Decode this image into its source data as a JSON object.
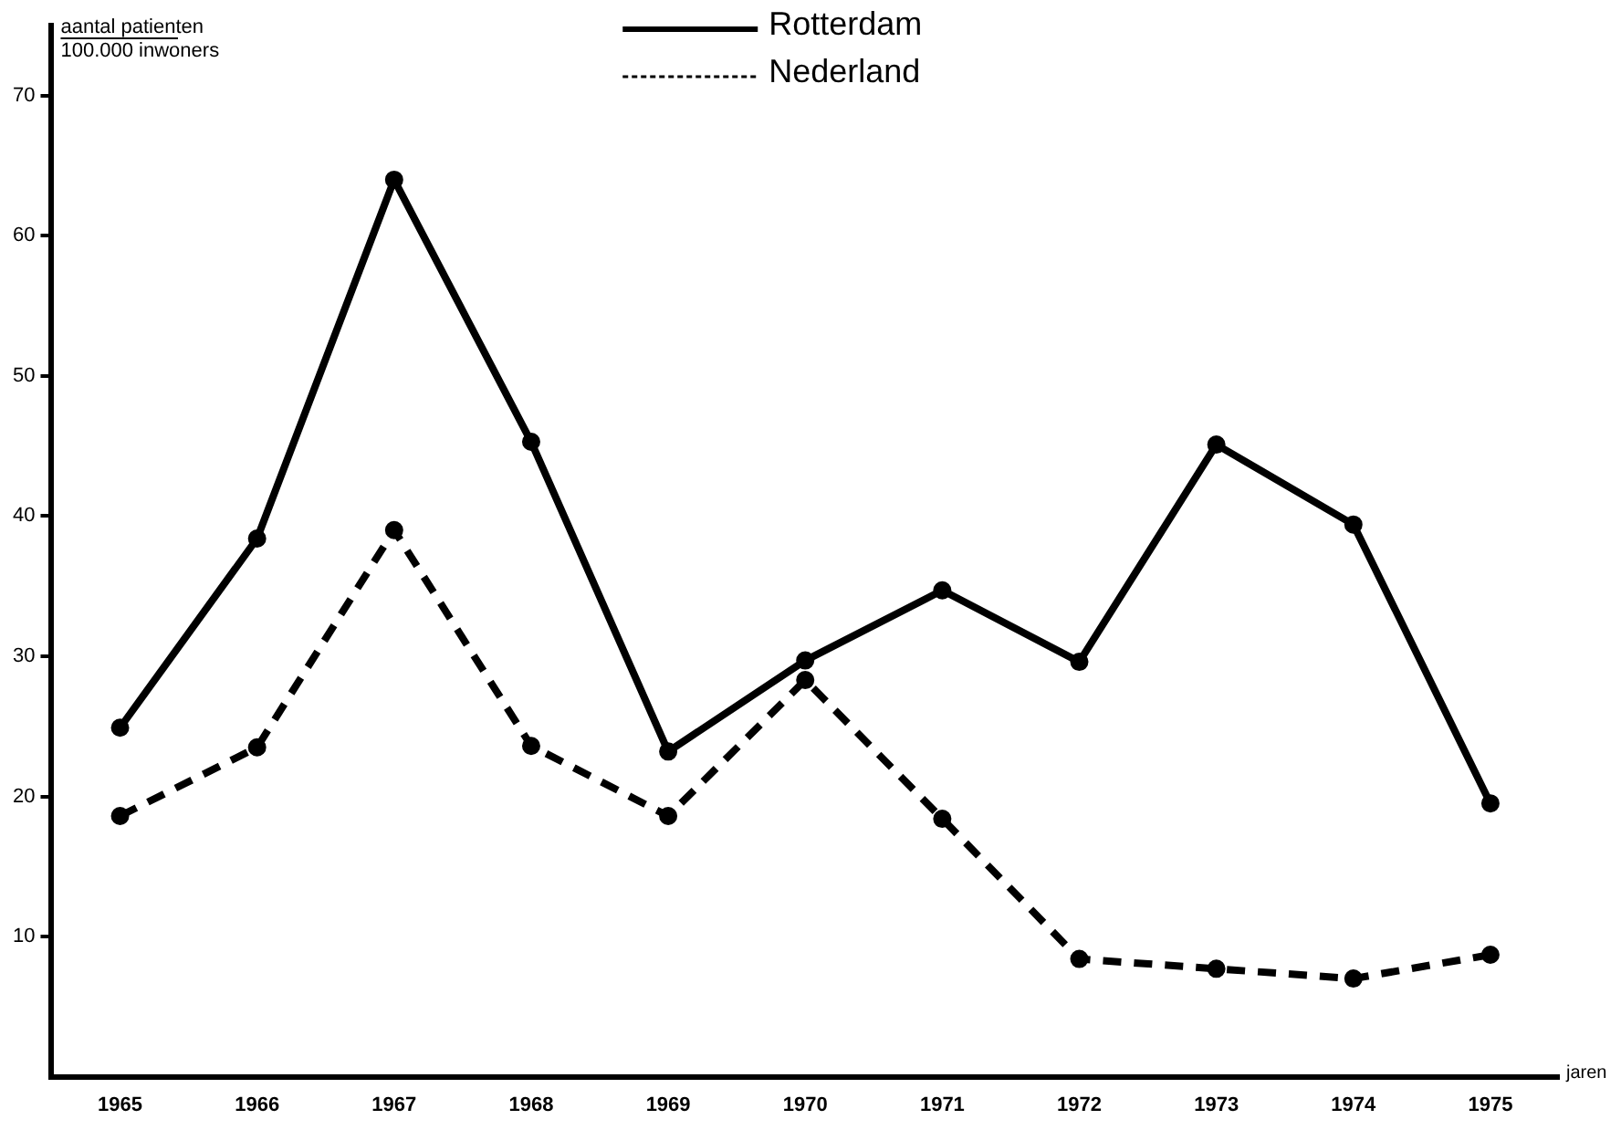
{
  "chart_data": {
    "type": "line",
    "ylabel": "aantal patienten\n100.000 inwoners",
    "xlabel": "jaren",
    "categories": [
      "1965",
      "1966",
      "1967",
      "1968",
      "1969",
      "1970",
      "1971",
      "1972",
      "1973",
      "1974",
      "1975"
    ],
    "series": [
      {
        "name": "Rotterdam",
        "color": "#000000",
        "line_style": "solid",
        "values": [
          24.9,
          38.4,
          64.0,
          45.3,
          23.2,
          29.7,
          34.7,
          29.6,
          45.1,
          39.4,
          19.5
        ]
      },
      {
        "name": "Nederland",
        "color": "#000000",
        "line_style": "dashed",
        "values": [
          18.6,
          23.5,
          39.0,
          23.6,
          18.6,
          28.3,
          18.4,
          8.4,
          7.7,
          7.0,
          8.7
        ]
      }
    ],
    "ylim": [
      0,
      75
    ],
    "yticks": [
      10,
      20,
      30,
      40,
      50,
      60,
      70
    ],
    "grid": false,
    "legend": "top",
    "marker": "circle"
  }
}
